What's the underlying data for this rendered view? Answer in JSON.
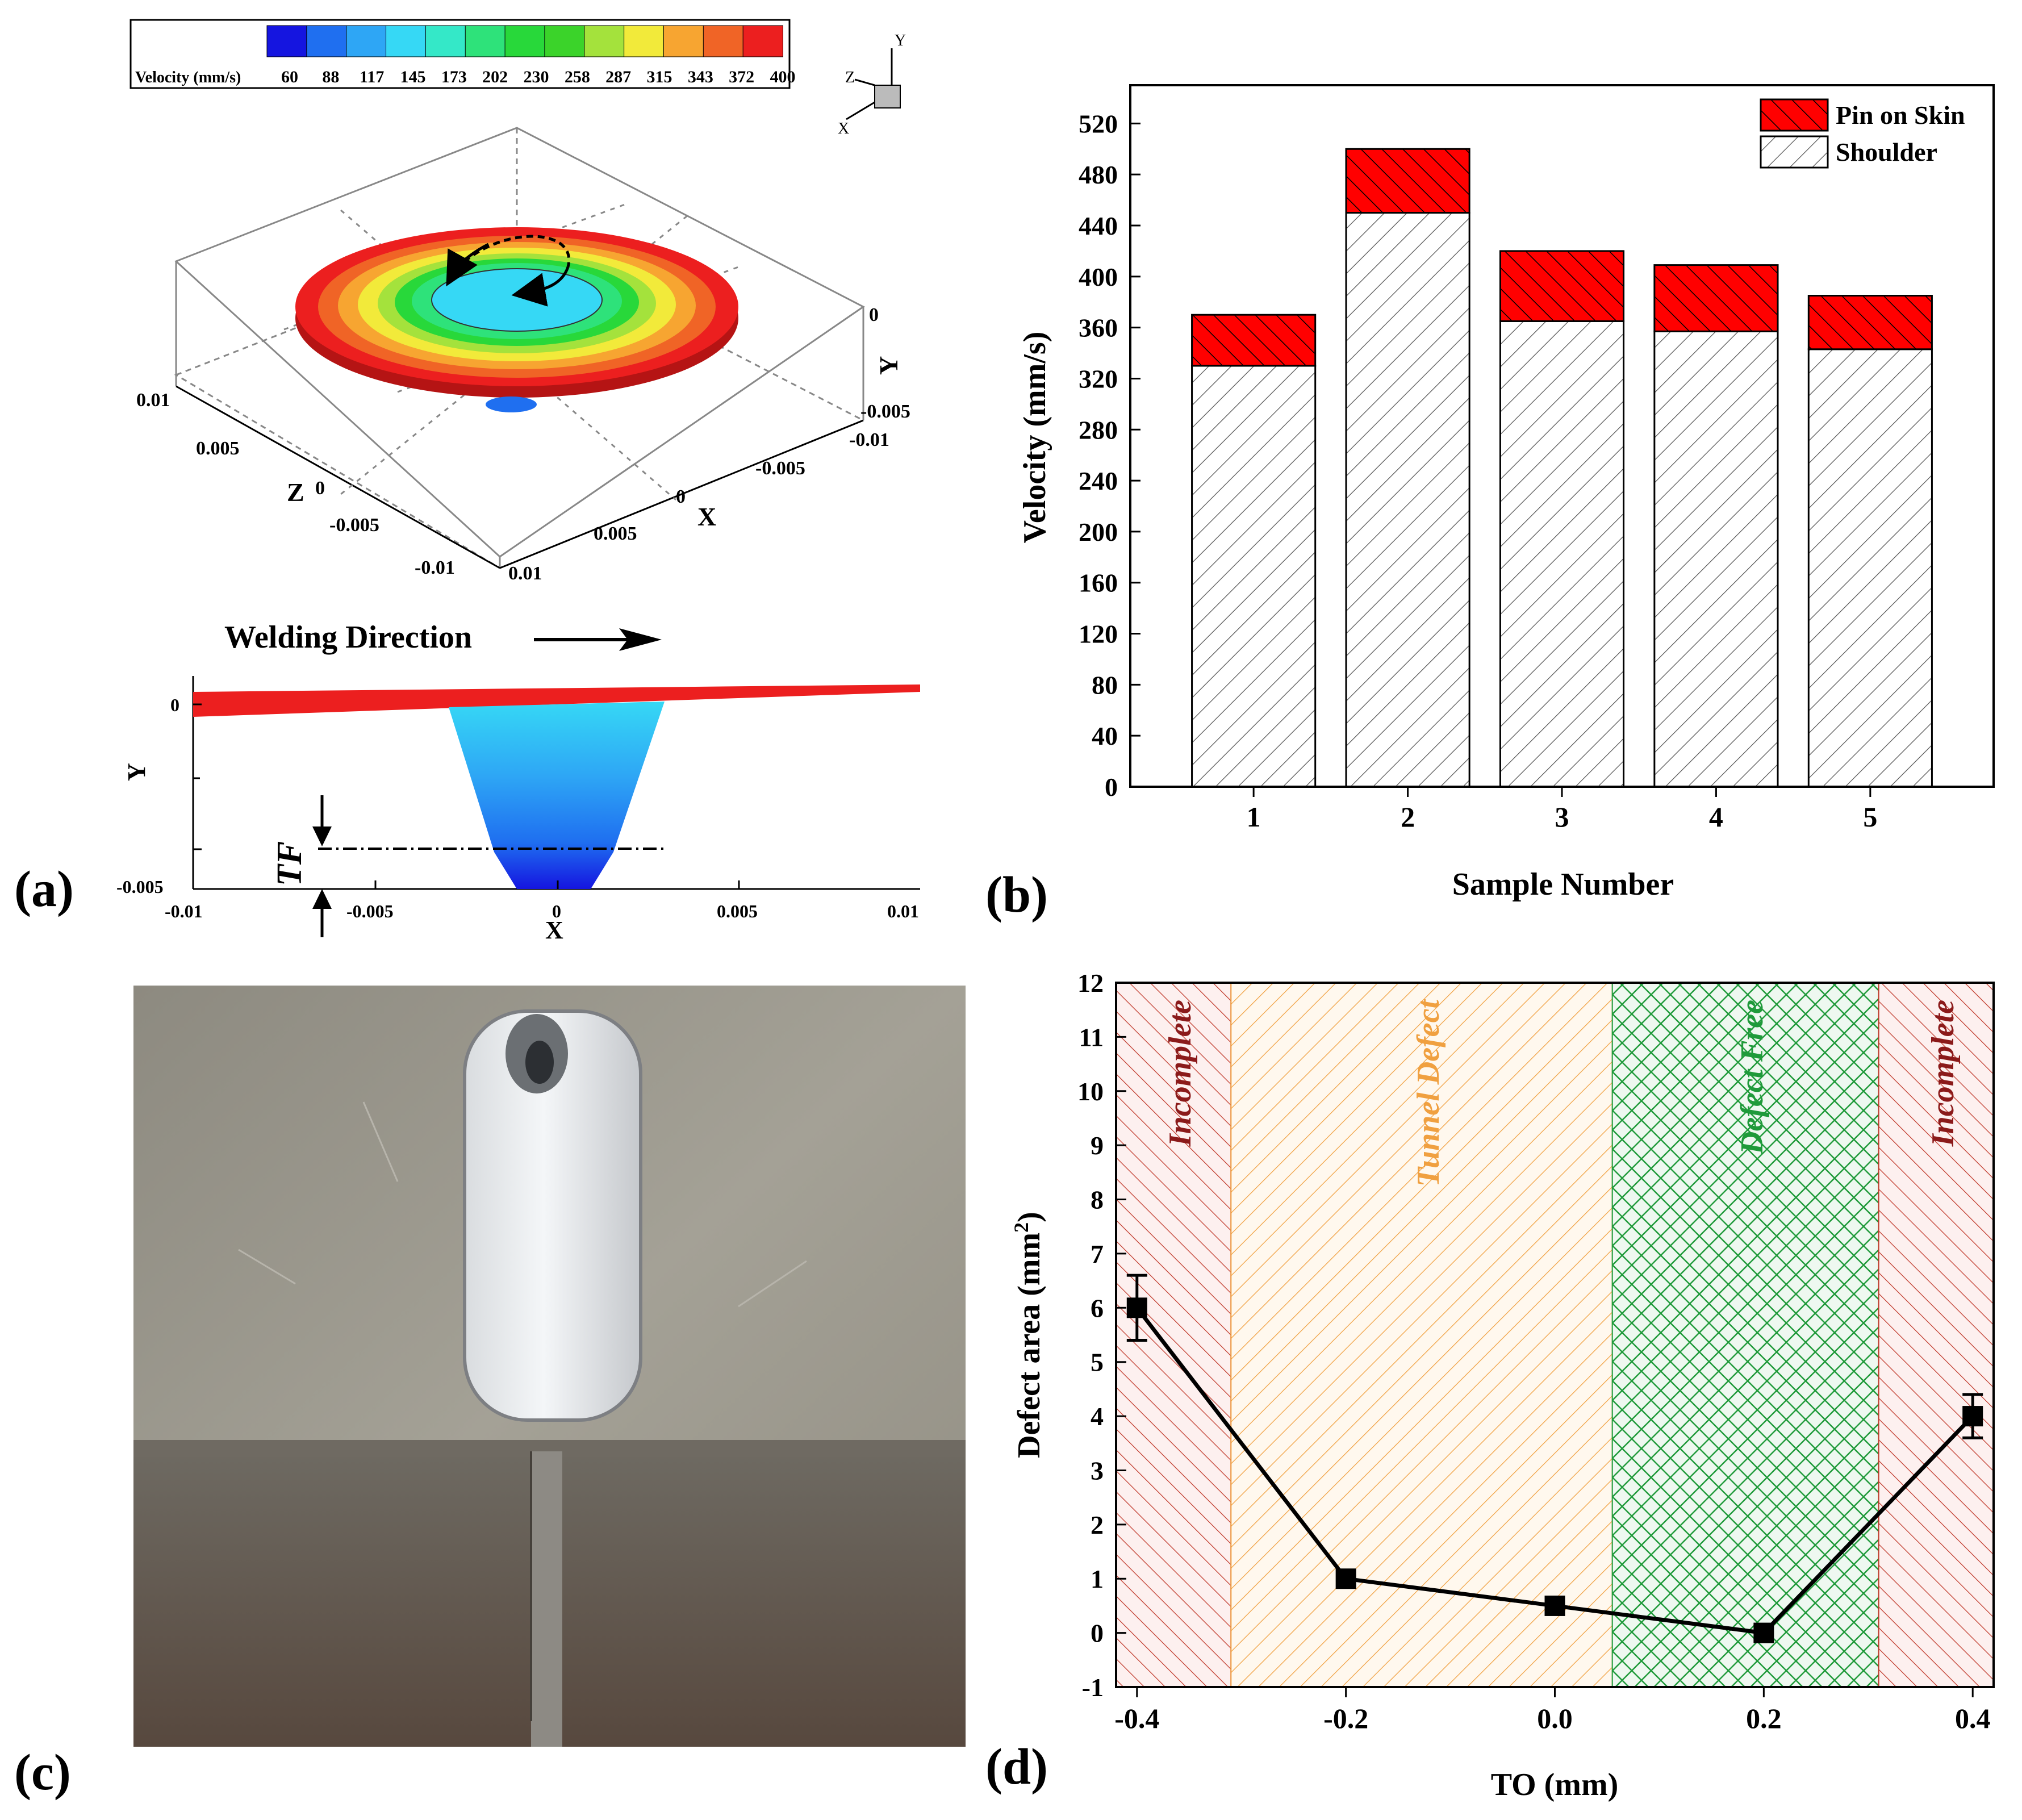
{
  "panel_a": {
    "label": "(a)",
    "colorbar_title": "Velocity (mm/s)",
    "colorbar_ticks": [
      "60",
      "88",
      "117",
      "145",
      "173",
      "202",
      "230",
      "258",
      "287",
      "315",
      "343",
      "372",
      "400"
    ],
    "colorbar_colors": [
      "#1515e0",
      "#1f6ff0",
      "#2ea6f5",
      "#36d8f5",
      "#34e8c8",
      "#2ee27a",
      "#28d83a",
      "#3bd32a",
      "#a4e23c",
      "#f2ea3a",
      "#f7a531",
      "#f06426",
      "#ec1f1f"
    ],
    "axes_triad": {
      "y": "Y",
      "z": "Z",
      "x": "X"
    },
    "iso": {
      "axis_z": "Z",
      "axis_x": "X",
      "axis_y": "Y",
      "z_ticks": [
        "0.01",
        "0.005",
        "0",
        "-0.005",
        "-0.01"
      ],
      "x_ticks": [
        "0.01",
        "0.005",
        "0",
        "-0.005",
        "-0.01"
      ],
      "y_ticks": [
        "0",
        "-0.005"
      ]
    },
    "welding_direction": "Welding Direction",
    "section": {
      "xlabel": "X",
      "ylabel": "Y",
      "x_ticks": [
        "-0.01",
        "-0.005",
        "0",
        "0.005",
        "0.01"
      ],
      "y_ticks": [
        "0",
        "-0.005"
      ],
      "tf_label": "TF"
    }
  },
  "panel_b": {
    "label": "(b)",
    "chart_data": {
      "type": "bar",
      "stacked": true,
      "categories": [
        "1",
        "2",
        "3",
        "4",
        "5"
      ],
      "series": [
        {
          "name": "Shoulder",
          "values": [
            330,
            450,
            365,
            357,
            343
          ]
        },
        {
          "name": "Pin on Skin",
          "values": [
            40,
            50,
            55,
            52,
            42
          ]
        }
      ],
      "xlabel": "Sample Number",
      "ylabel": "Velocity (mm/s)",
      "ylim": [
        0,
        550
      ],
      "yticks": [
        0,
        40,
        80,
        120,
        160,
        200,
        240,
        280,
        320,
        360,
        400,
        440,
        480,
        520
      ],
      "legend": "top-right"
    }
  },
  "panel_c": {
    "label": "(c)"
  },
  "panel_d": {
    "label": "(d)",
    "chart_data": {
      "type": "line",
      "x": [
        -0.4,
        -0.2,
        0.0,
        0.2,
        0.4
      ],
      "y": [
        6,
        1,
        0.5,
        0,
        4
      ],
      "error": [
        0.6,
        0,
        0,
        0,
        0.4
      ],
      "xlabel": "TO (mm)",
      "ylabel": "Defect area (mm",
      "ylabel_sup": "2",
      "ylabel_end": ")",
      "xlim": [
        -0.42,
        0.42
      ],
      "ylim": [
        -1,
        12
      ],
      "xticks": [
        "-0.4",
        "-0.2",
        "0.0",
        "0.2",
        "0.4"
      ],
      "yticks": [
        "-1",
        "0",
        "1",
        "2",
        "3",
        "4",
        "5",
        "6",
        "7",
        "8",
        "9",
        "10",
        "11",
        "12"
      ],
      "regions": [
        {
          "label": "Incomplete",
          "from": -0.42,
          "to": -0.31,
          "color": "#c0392b"
        },
        {
          "label": "Tunnel Defect",
          "from": -0.31,
          "to": 0.055,
          "color": "#f0a040"
        },
        {
          "label": "Defect Free",
          "from": 0.055,
          "to": 0.31,
          "color": "#1f9a3a"
        },
        {
          "label": "Incomplete",
          "from": 0.31,
          "to": 0.42,
          "color": "#c0392b"
        }
      ]
    }
  }
}
